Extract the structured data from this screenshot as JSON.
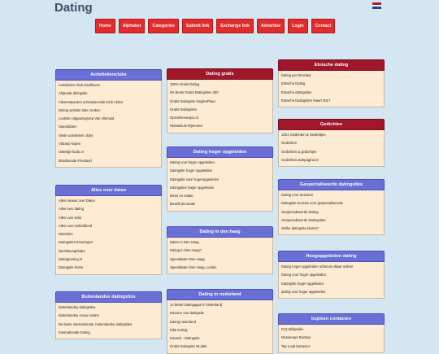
{
  "site": {
    "title": "Dating"
  },
  "flag": {
    "colors": [
      "#ae1c28",
      "#ffffff",
      "#21468b"
    ],
    "icon": "netherlands-flag-icon"
  },
  "nav": [
    "Home",
    "Alphabet",
    "Categories",
    "Submit link",
    "Exchange link",
    "Advertise",
    "Login",
    "Contact"
  ],
  "colors": {
    "nav_bg": "#e22b2b",
    "head_blue": "#6a6fd6",
    "head_red": "#a0162a",
    "body_bg": "#fdebd3",
    "page_bg": "#d5e6f3"
  },
  "boxes": {
    "activiteitenclubs": {
      "title": "Activiteitenclubs",
      "items": [
        "Activiteiten Club Eindhoven",
        "Afspraak datingsite",
        "Alleenstaanden activiteitenclub Klub Aktivo",
        "Dating website laten maken",
        "Leukste Uitgaansgroep Van Allemaal",
        "Speeddaten",
        "Vaste activiteiten clubs",
        "Vibrator kopen",
        "Valentijn-kado.nl",
        "Bruidsmode Friesland"
      ]
    },
    "alles_over_daten": {
      "title": "Alles over daten",
      "items": [
        "Alles nieuws over Daten",
        "Alles over dating",
        "Alles over seks",
        "Alles over verliefdheid",
        "Datesites",
        "Datingsites Ervaringen",
        "Nachtlounge­babe",
        "Datingmeting.nl",
        "Datingsite homo"
      ]
    },
    "buitenlandse": {
      "title": "Buitenlandse datingsites",
      "items": [
        "Buitenlandse datingsites",
        "Buitenlandse vrouw vinden",
        "De beste internationale, buitenlandse datingsites",
        "Internationale Dating"
      ]
    },
    "dating_gratis": {
      "title": "Dating gratis",
      "items": [
        "100% Gratis Dating",
        "De Beste Gratis Datingsites 250",
        "Gratis Datingsite SinglesPlace",
        "Gratis Datingsites",
        "Opzoekenaarjou.nl",
        "Relatiehuis Rijnmond"
      ]
    },
    "dating_hoger": {
      "title": "Dating hoger opgeleiden",
      "items": [
        "Dating voor hoger opgeleiden",
        "Datingsite hoger opgeleiden",
        "Datingsite voor hogeropgeleiden",
        "Datingsites hoger opgeleiden",
        "Mens en relatie",
        "Bruisfit decoratie"
      ]
    },
    "dating_den_haag": {
      "title": "Dating in den haag",
      "items": [
        "Daten in Den Haag",
        "Dating in Den Haag?",
        "Speeddaten Den Haag",
        "Speeddaten Den Haag, Leiden"
      ]
    },
    "dating_nederland": {
      "title": "Dating in nederland",
      "items": [
        "14 Beste Datingapps In Nederland",
        "Bouwen van datingsite",
        "Dating nederland",
        "Elite Dating",
        "Ematch - Datingsite",
        "Gratis Datingsite NLdate"
      ]
    },
    "etnische": {
      "title": "Etnische dating",
      "items": [
        "Dating per Etniciteit",
        "Etnische Dating",
        "Etnische datingsites",
        "Etnische Datingsites Maart 2017"
      ]
    },
    "gedichten": {
      "title": "Gedichten",
      "items": [
        "1001 Gedichten & Gedichtjes",
        "Gedichten",
        "Gedichten & gedichtjes",
        "Gedichten.startpagina.nl"
      ]
    },
    "gespecialiseerde": {
      "title": "Gespecialiseerde datingsites",
      "items": [
        "Dating voor Senioren",
        "Datingsite reviews voor gespecialiseerde",
        "Gespecialiseerde Dating",
        "Gespecialiseerde Datingsites",
        "Welke datingsite kiezen?"
      ]
    },
    "hoogopgeleiden": {
      "title": "Hoogopgeleiden dating",
      "items": [
        "Dating hoger opgeleiden onbrood elkaar online!",
        "Dating voor hoger opgeleiden.",
        "Datingsite hoger opgeleiden",
        "dating voor hoger opgeleiden"
      ]
    },
    "icq": {
      "title": "Icq/msn contacten",
      "items": [
        "ICQ Wikipedia",
        "Messenger Backup",
        "Top Load Extractor"
      ]
    }
  }
}
